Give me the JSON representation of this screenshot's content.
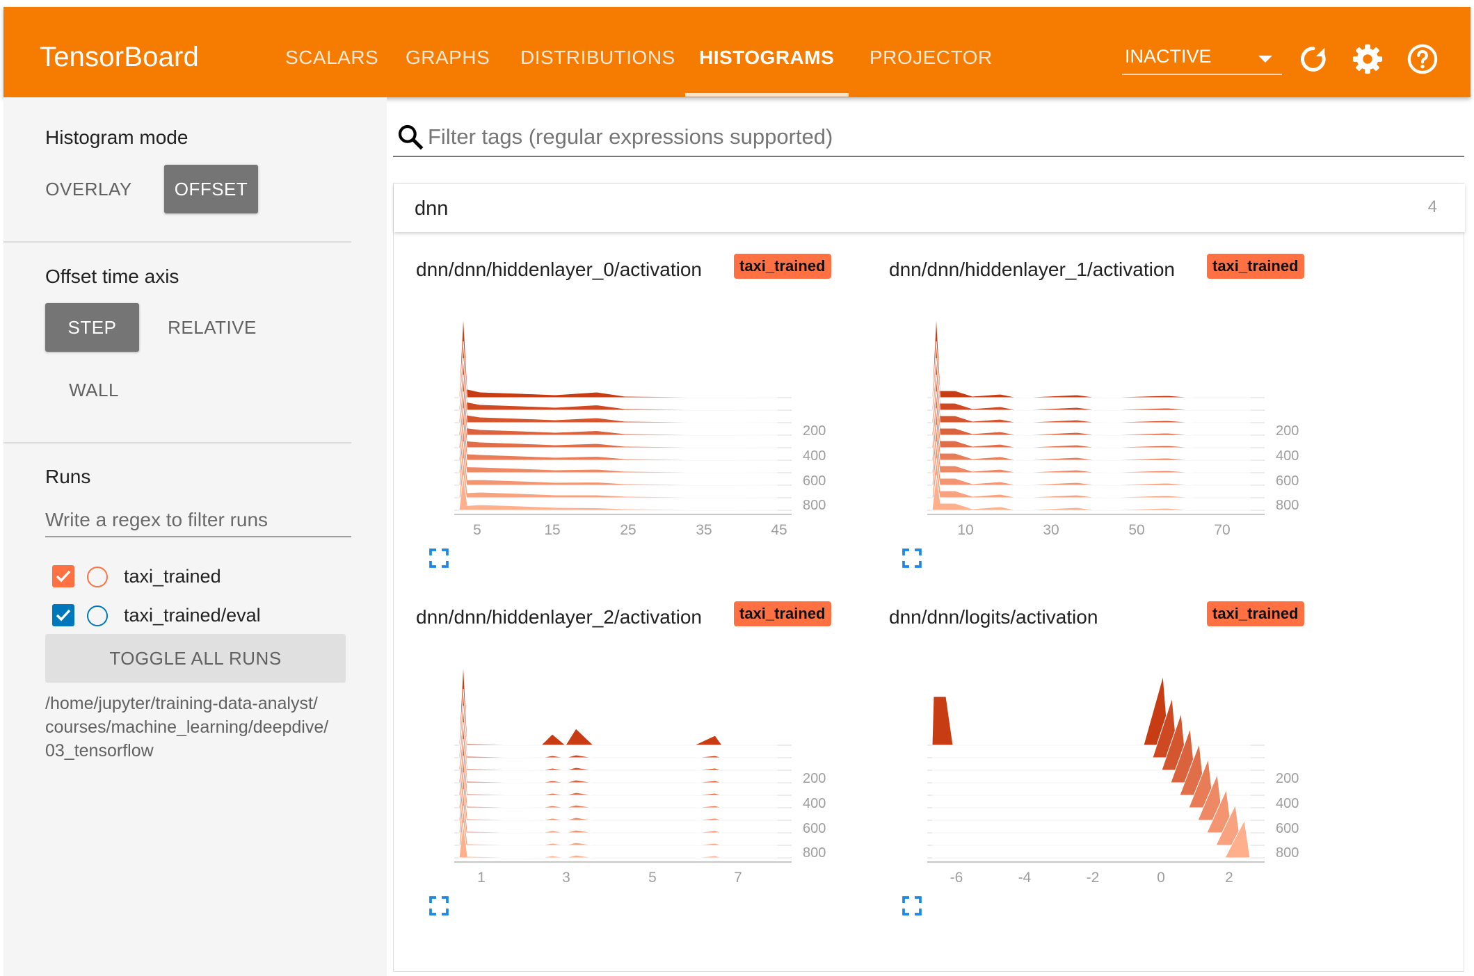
{
  "header": {
    "brand": "TensorBoard",
    "tabs": [
      {
        "label": "SCALARS"
      },
      {
        "label": "GRAPHS"
      },
      {
        "label": "DISTRIBUTIONS"
      },
      {
        "label": "HISTOGRAMS",
        "active": true
      },
      {
        "label": "PROJECTOR"
      }
    ],
    "run_selector": "INACTIVE",
    "icons": [
      "reload-icon",
      "settings-icon",
      "help-icon"
    ],
    "accent_color": "#f57c00"
  },
  "sidebar": {
    "histogram_mode": {
      "title": "Histogram mode",
      "options": [
        "OVERLAY",
        "OFFSET"
      ],
      "selected": "OFFSET"
    },
    "offset_time_axis": {
      "title": "Offset time axis",
      "options": [
        "STEP",
        "RELATIVE",
        "WALL"
      ],
      "selected": "STEP"
    },
    "runs": {
      "title": "Runs",
      "filter_placeholder": "Write a regex to filter runs",
      "items": [
        {
          "name": "taxi_trained",
          "checked": true,
          "color": "#ff7043"
        },
        {
          "name": "taxi_trained/eval",
          "checked": true,
          "color": "#0077bb"
        }
      ],
      "toggle_label": "TOGGLE ALL RUNS",
      "log_dir": [
        "/home/jupyter/training-data-analyst/",
        "courses/machine_learning/deepdive/",
        "03_tensorflow"
      ]
    }
  },
  "main": {
    "filter_placeholder": "Filter tags (regular expressions supported)",
    "category": {
      "name": "dnn",
      "count": "4"
    },
    "cards": [
      {
        "title": "dnn/dnn/hiddenlayer_0/activation",
        "run": "taxi_trained",
        "x_ticks": [
          "5",
          "15",
          "25",
          "35",
          "45"
        ],
        "y_ticks": [
          "200",
          "400",
          "600",
          "800"
        ]
      },
      {
        "title": "dnn/dnn/hiddenlayer_1/activation",
        "run": "taxi_trained",
        "x_ticks": [
          "10",
          "30",
          "50",
          "70"
        ],
        "y_ticks": [
          "200",
          "400",
          "600",
          "800"
        ]
      },
      {
        "title": "dnn/dnn/hiddenlayer_2/activation",
        "run": "taxi_trained",
        "x_ticks": [
          "1",
          "3",
          "5",
          "7"
        ],
        "y_ticks": [
          "200",
          "400",
          "600",
          "800"
        ]
      },
      {
        "title": "dnn/dnn/logits/activation",
        "run": "taxi_trained",
        "x_ticks": [
          "-6",
          "-4",
          "-2",
          "0",
          "2"
        ],
        "y_ticks": [
          "200",
          "400",
          "600",
          "800"
        ]
      }
    ]
  }
}
